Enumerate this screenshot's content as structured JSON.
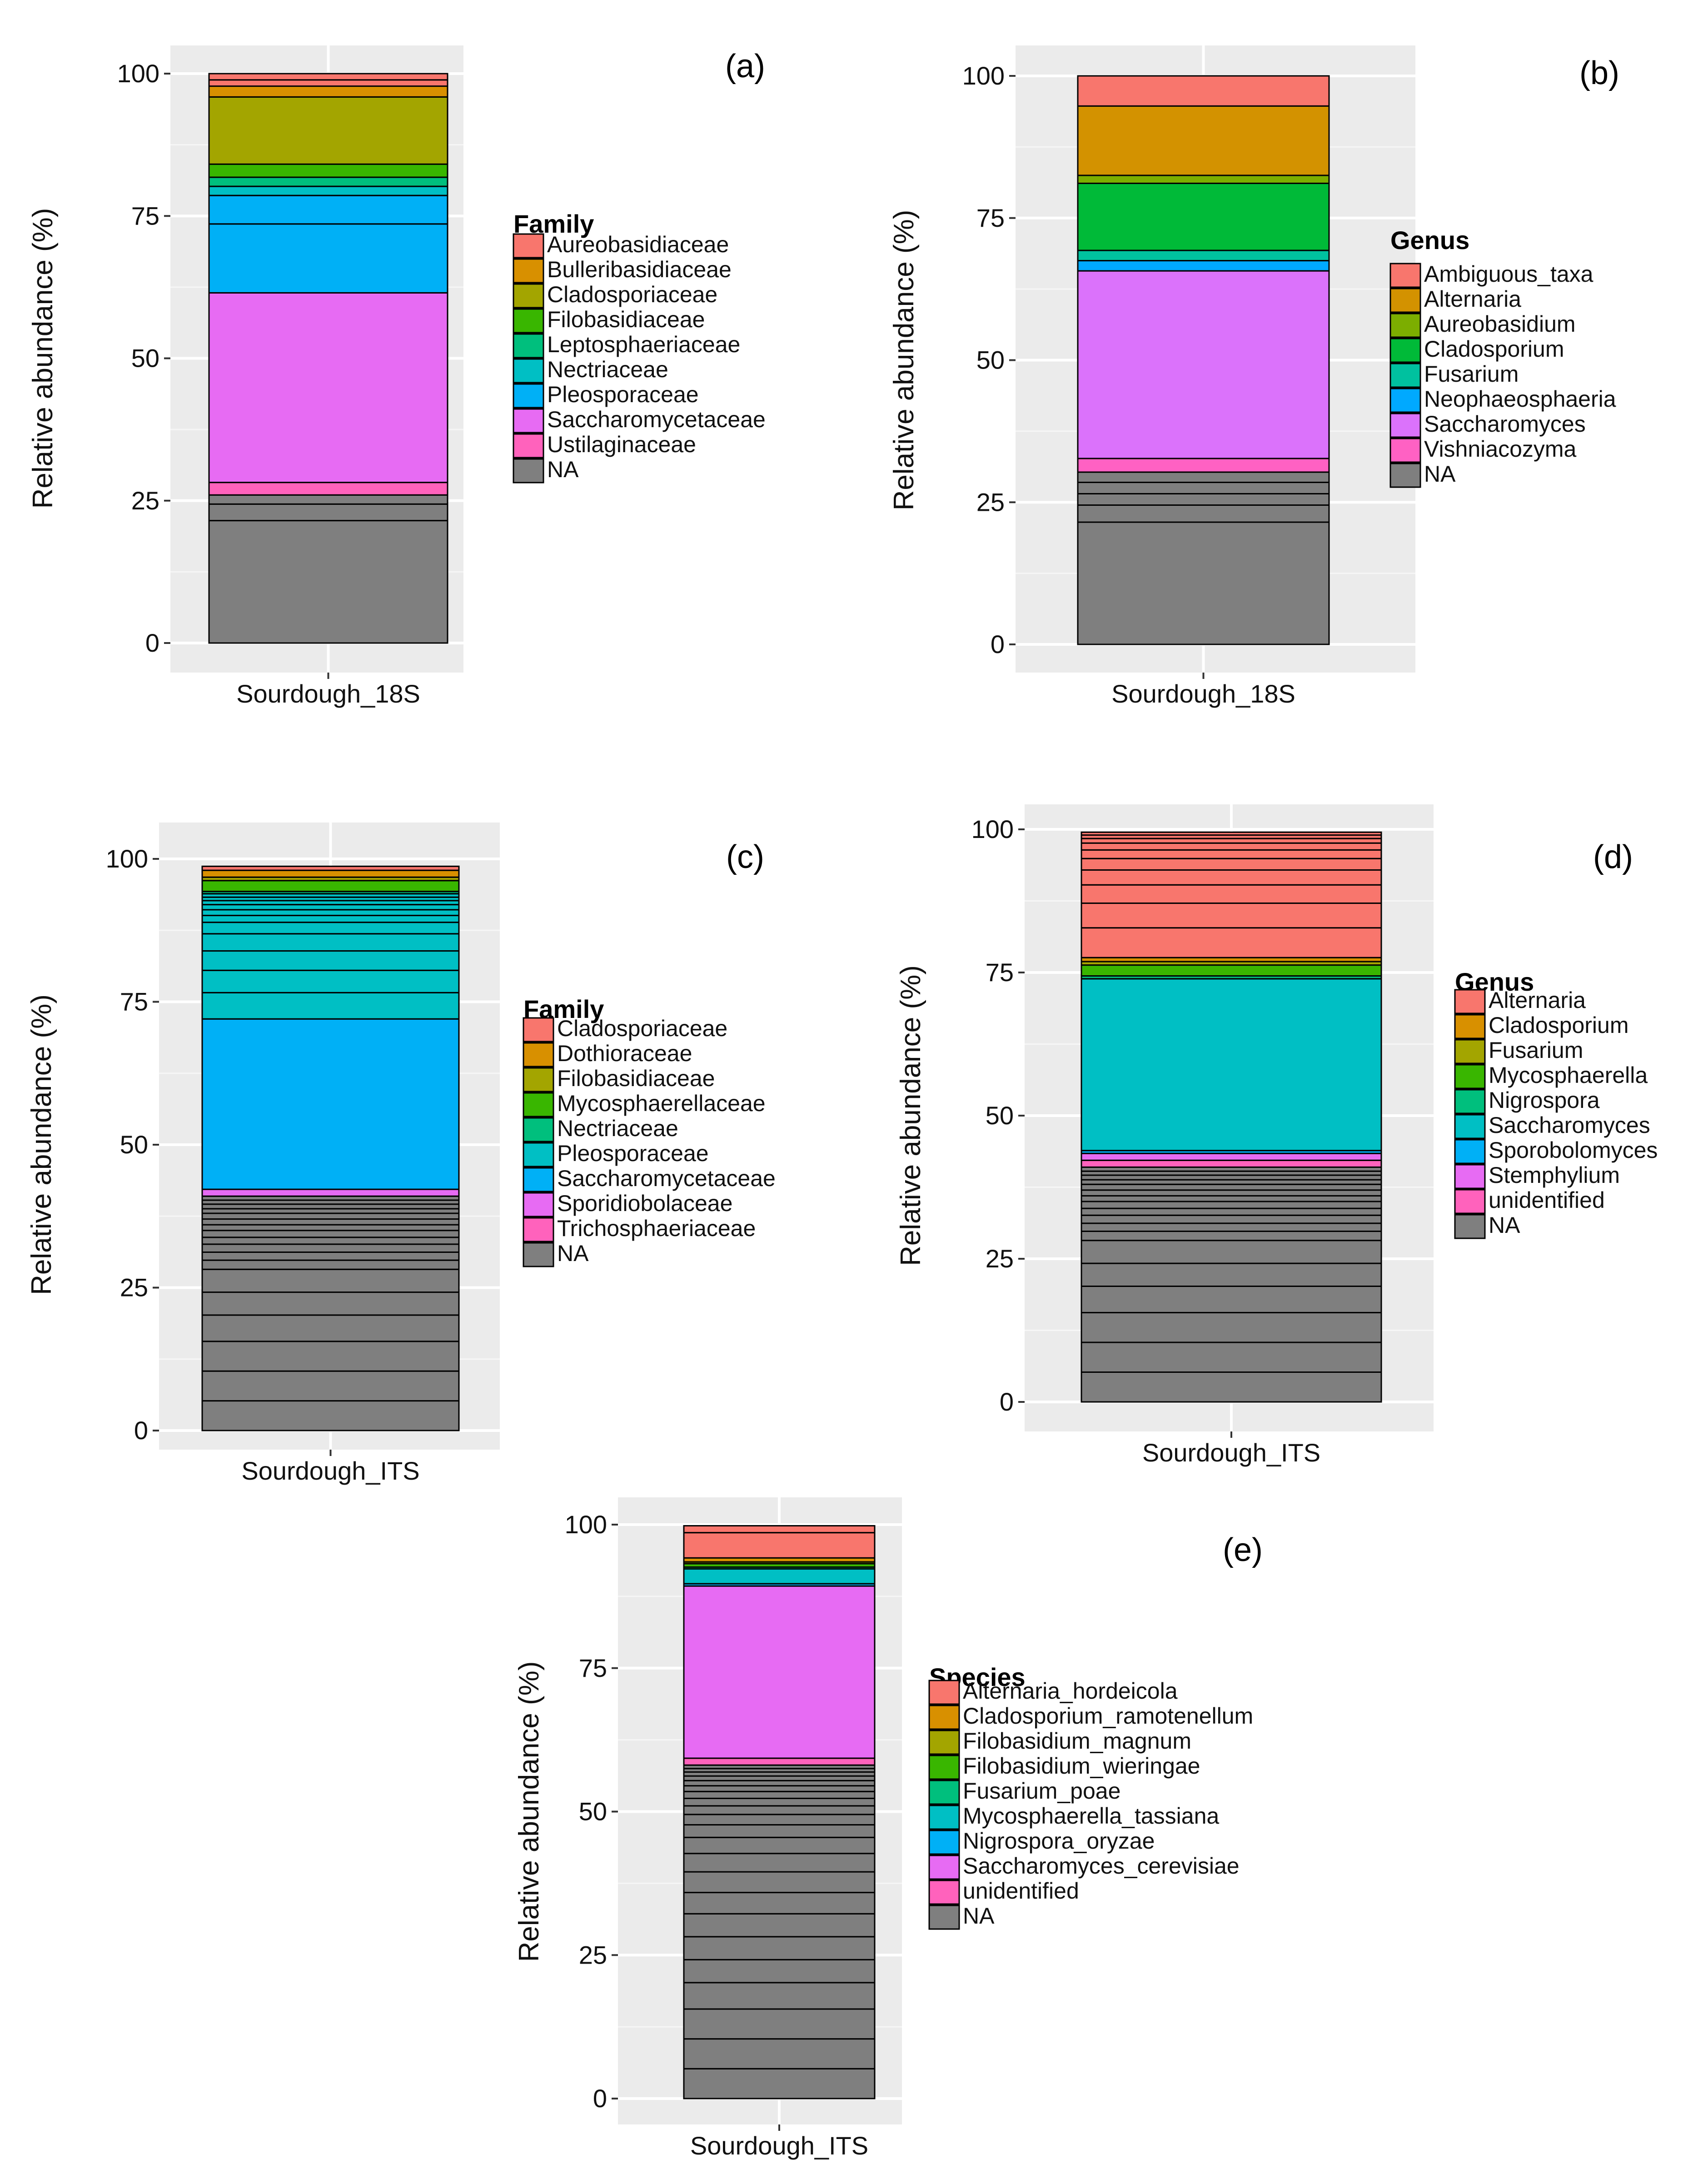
{
  "chart_data": [
    {
      "type": "bar",
      "panel_label": "(a)",
      "ylabel": "Relative abundance (%)",
      "ylim": [
        0,
        100
      ],
      "yticks": [
        "0",
        "25",
        "50",
        "75",
        "100"
      ],
      "categories": [
        "Sourdough_18S"
      ],
      "legend_title": "Family",
      "legend": [
        "Aureobasidiaceae",
        "Bulleribasidiaceae",
        "Cladosporiaceae",
        "Filobasidiaceae",
        "Leptosphaeriaceae",
        "Nectriaceae",
        "Pleosporaceae",
        "Saccharomycetaceae",
        "Ustilaginaceae",
        "NA"
      ],
      "colors": [
        "#F8766D",
        "#D89000",
        "#A3A500",
        "#39B600",
        "#00BF7D",
        "#00BFC4",
        "#00B0F6",
        "#E76BF3",
        "#FF62BC",
        "#7F7F7F"
      ],
      "segments": [
        {
          "taxon": "NA",
          "value": 21.5
        },
        {
          "taxon": "NA",
          "value": 2.9
        },
        {
          "taxon": "NA",
          "value": 1.6
        },
        {
          "taxon": "Ustilaginaceae",
          "value": 2.2
        },
        {
          "taxon": "Saccharomycetaceae",
          "value": 33.3
        },
        {
          "taxon": "Pleosporaceae",
          "value": 12.1
        },
        {
          "taxon": "Pleosporaceae",
          "value": 5.0
        },
        {
          "taxon": "Nectriaceae",
          "value": 1.6
        },
        {
          "taxon": "Leptosphaeriaceae",
          "value": 1.6
        },
        {
          "taxon": "Filobasidiaceae",
          "value": 2.3
        },
        {
          "taxon": "Cladosporiaceae",
          "value": 11.8
        },
        {
          "taxon": "Bulleribasidiaceae",
          "value": 1.9
        },
        {
          "taxon": "Aureobasidiaceae",
          "value": 1.1
        },
        {
          "taxon": "Aureobasidiaceae",
          "value": 1.1
        }
      ]
    },
    {
      "type": "bar",
      "panel_label": "(b)",
      "ylabel": "Relative abundance (%)",
      "ylim": [
        0,
        100
      ],
      "yticks": [
        "0",
        "25",
        "50",
        "75",
        "100"
      ],
      "categories": [
        "Sourdough_18S"
      ],
      "legend_title": "Genus",
      "legend": [
        "Ambiguous_taxa",
        "Alternaria",
        "Aureobasidium",
        "Cladosporium",
        "Fusarium",
        "Neophaeosphaeria",
        "Saccharomyces",
        "Vishniacozyma",
        "NA"
      ],
      "colors": [
        "#F8766D",
        "#D39200",
        "#7CAE00",
        "#00BA38",
        "#00C19F",
        "#00A9FF",
        "#DB72FB",
        "#FF61C3",
        "#7F7F7F"
      ],
      "segments": [
        {
          "taxon": "NA",
          "value": 21.5
        },
        {
          "taxon": "NA",
          "value": 3.0
        },
        {
          "taxon": "NA",
          "value": 2.0
        },
        {
          "taxon": "NA",
          "value": 2.0
        },
        {
          "taxon": "NA",
          "value": 1.8
        },
        {
          "taxon": "Vishniacozyma",
          "value": 2.4
        },
        {
          "taxon": "Saccharomyces",
          "value": 33.0
        },
        {
          "taxon": "Neophaeosphaeria",
          "value": 1.8
        },
        {
          "taxon": "Fusarium",
          "value": 1.8
        },
        {
          "taxon": "Cladosporium",
          "value": 11.8
        },
        {
          "taxon": "Aureobasidium",
          "value": 1.4
        },
        {
          "taxon": "Alternaria",
          "value": 12.2
        },
        {
          "taxon": "Ambiguous_taxa",
          "value": 5.3
        }
      ]
    },
    {
      "type": "bar",
      "panel_label": "(c)",
      "ylabel": "Relative abundance (%)",
      "ylim": [
        0,
        100
      ],
      "yticks": [
        "0",
        "25",
        "50",
        "75",
        "100"
      ],
      "categories": [
        "Sourdough_ITS"
      ],
      "legend_title": "Family",
      "legend": [
        "Cladosporiaceae",
        "Dothioraceae",
        "Filobasidiaceae",
        "Mycosphaerellaceae",
        "Nectriaceae",
        "Pleosporaceae",
        "Saccharomycetaceae",
        "Sporidiobolaceae",
        "Trichosphaeriaceae",
        "NA"
      ],
      "colors": [
        "#F8766D",
        "#D89000",
        "#A3A500",
        "#39B600",
        "#00BF7D",
        "#00BFC4",
        "#00B0F6",
        "#E76BF3",
        "#FF62BC",
        "#7F7F7F"
      ],
      "segments": [
        {
          "taxon": "NA",
          "value": 5.2
        },
        {
          "taxon": "NA",
          "value": 5.2
        },
        {
          "taxon": "NA",
          "value": 5.2
        },
        {
          "taxon": "NA",
          "value": 4.6
        },
        {
          "taxon": "NA",
          "value": 4.0
        },
        {
          "taxon": "NA",
          "value": 4.0
        },
        {
          "taxon": "NA",
          "value": 1.6
        },
        {
          "taxon": "NA",
          "value": 1.4
        },
        {
          "taxon": "NA",
          "value": 1.4
        },
        {
          "taxon": "NA",
          "value": 1.2
        },
        {
          "taxon": "NA",
          "value": 1.2
        },
        {
          "taxon": "NA",
          "value": 1.0
        },
        {
          "taxon": "NA",
          "value": 1.0
        },
        {
          "taxon": "NA",
          "value": 1.0
        },
        {
          "taxon": "NA",
          "value": 0.8
        },
        {
          "taxon": "NA",
          "value": 0.8
        },
        {
          "taxon": "NA",
          "value": 0.7
        },
        {
          "taxon": "NA",
          "value": 0.7
        },
        {
          "taxon": "Sporidiobolaceae",
          "value": 1.2
        },
        {
          "taxon": "Saccharomycetaceae",
          "value": 29.8
        },
        {
          "taxon": "Pleosporaceae",
          "value": 4.6
        },
        {
          "taxon": "Pleosporaceae",
          "value": 3.9
        },
        {
          "taxon": "Pleosporaceae",
          "value": 3.4
        },
        {
          "taxon": "Pleosporaceae",
          "value": 3.0
        },
        {
          "taxon": "Pleosporaceae",
          "value": 2.0
        },
        {
          "taxon": "Pleosporaceae",
          "value": 1.2
        },
        {
          "taxon": "Pleosporaceae",
          "value": 1.0
        },
        {
          "taxon": "Pleosporaceae",
          "value": 0.9
        },
        {
          "taxon": "Pleosporaceae",
          "value": 0.7
        },
        {
          "taxon": "Pleosporaceae",
          "value": 0.6
        },
        {
          "taxon": "Pleosporaceae",
          "value": 0.6
        },
        {
          "taxon": "Nectriaceae",
          "value": 0.4
        },
        {
          "taxon": "Mycosphaerellaceae",
          "value": 1.9
        },
        {
          "taxon": "Filobasidiaceae",
          "value": 0.6
        },
        {
          "taxon": "Dothioraceae",
          "value": 1.2
        },
        {
          "taxon": "Cladosporiaceae",
          "value": 0.7
        }
      ]
    },
    {
      "type": "bar",
      "panel_label": "(d)",
      "ylabel": "Relative abundance (%)",
      "ylim": [
        0,
        100
      ],
      "yticks": [
        "0",
        "25",
        "50",
        "75",
        "100"
      ],
      "categories": [
        "Sourdough_ITS"
      ],
      "legend_title": "Genus",
      "legend": [
        "Alternaria",
        "Cladosporium",
        "Fusarium",
        "Mycosphaerella",
        "Nigrospora",
        "Saccharomyces",
        "Sporobolomyces",
        "Stemphylium",
        "unidentified",
        "NA"
      ],
      "colors": [
        "#F8766D",
        "#D89000",
        "#A3A500",
        "#39B600",
        "#00BF7D",
        "#00BFC4",
        "#00B0F6",
        "#E76BF3",
        "#FF62BC",
        "#7F7F7F"
      ],
      "segments": [
        {
          "taxon": "NA",
          "value": 5.2
        },
        {
          "taxon": "NA",
          "value": 5.2
        },
        {
          "taxon": "NA",
          "value": 5.2
        },
        {
          "taxon": "NA",
          "value": 4.6
        },
        {
          "taxon": "NA",
          "value": 4.0
        },
        {
          "taxon": "NA",
          "value": 4.0
        },
        {
          "taxon": "NA",
          "value": 1.6
        },
        {
          "taxon": "NA",
          "value": 1.4
        },
        {
          "taxon": "NA",
          "value": 1.4
        },
        {
          "taxon": "NA",
          "value": 1.2
        },
        {
          "taxon": "NA",
          "value": 1.2
        },
        {
          "taxon": "NA",
          "value": 1.0
        },
        {
          "taxon": "NA",
          "value": 1.0
        },
        {
          "taxon": "NA",
          "value": 1.0
        },
        {
          "taxon": "NA",
          "value": 0.8
        },
        {
          "taxon": "NA",
          "value": 0.8
        },
        {
          "taxon": "NA",
          "value": 0.7
        },
        {
          "taxon": "NA",
          "value": 0.7
        },
        {
          "taxon": "unidentified",
          "value": 1.2
        },
        {
          "taxon": "Stemphylium",
          "value": 1.2
        },
        {
          "taxon": "Sporobolomyces",
          "value": 0.5
        },
        {
          "taxon": "Saccharomyces",
          "value": 30.0
        },
        {
          "taxon": "Nigrospora",
          "value": 0.5
        },
        {
          "taxon": "Mycosphaerella",
          "value": 1.9
        },
        {
          "taxon": "Fusarium",
          "value": 0.6
        },
        {
          "taxon": "Cladosporium",
          "value": 0.7
        },
        {
          "taxon": "Alternaria",
          "value": 5.2
        },
        {
          "taxon": "Alternaria",
          "value": 4.3
        },
        {
          "taxon": "Alternaria",
          "value": 3.2
        },
        {
          "taxon": "Alternaria",
          "value": 2.6
        },
        {
          "taxon": "Alternaria",
          "value": 2.0
        },
        {
          "taxon": "Alternaria",
          "value": 1.5
        },
        {
          "taxon": "Alternaria",
          "value": 1.2
        },
        {
          "taxon": "Alternaria",
          "value": 0.8
        },
        {
          "taxon": "Alternaria",
          "value": 0.6
        },
        {
          "taxon": "Alternaria",
          "value": 0.5
        }
      ]
    },
    {
      "type": "bar",
      "panel_label": "(e)",
      "ylabel": "Relative abundance (%)",
      "ylim": [
        0,
        100
      ],
      "yticks": [
        "0",
        "25",
        "50",
        "75",
        "100"
      ],
      "categories": [
        "Sourdough_ITS"
      ],
      "legend_title": "Species",
      "legend": [
        "Alternaria_hordeicola",
        "Cladosporium_ramotenellum",
        "Filobasidium_magnum",
        "Filobasidium_wieringae",
        "Fusarium_poae",
        "Mycosphaerella_tassiana",
        "Nigrospora_oryzae",
        "Saccharomyces_cerevisiae",
        "unidentified",
        "NA"
      ],
      "colors": [
        "#F8766D",
        "#D89000",
        "#A3A500",
        "#39B600",
        "#00BF7D",
        "#00BFC4",
        "#00B0F6",
        "#E76BF3",
        "#FF62BC",
        "#7F7F7F"
      ],
      "segments": [
        {
          "taxon": "NA",
          "value": 5.2
        },
        {
          "taxon": "NA",
          "value": 5.2
        },
        {
          "taxon": "NA",
          "value": 5.2
        },
        {
          "taxon": "NA",
          "value": 4.6
        },
        {
          "taxon": "NA",
          "value": 4.0
        },
        {
          "taxon": "NA",
          "value": 4.0
        },
        {
          "taxon": "NA",
          "value": 4.0
        },
        {
          "taxon": "NA",
          "value": 3.7
        },
        {
          "taxon": "NA",
          "value": 3.6
        },
        {
          "taxon": "NA",
          "value": 3.2
        },
        {
          "taxon": "NA",
          "value": 2.8
        },
        {
          "taxon": "NA",
          "value": 2.2
        },
        {
          "taxon": "NA",
          "value": 1.8
        },
        {
          "taxon": "NA",
          "value": 1.5
        },
        {
          "taxon": "NA",
          "value": 1.3
        },
        {
          "taxon": "NA",
          "value": 1.2
        },
        {
          "taxon": "NA",
          "value": 1.0
        },
        {
          "taxon": "NA",
          "value": 0.9
        },
        {
          "taxon": "NA",
          "value": 0.8
        },
        {
          "taxon": "NA",
          "value": 0.7
        },
        {
          "taxon": "NA",
          "value": 0.6
        },
        {
          "taxon": "NA",
          "value": 0.6
        },
        {
          "taxon": "unidentified",
          "value": 1.2
        },
        {
          "taxon": "Saccharomyces_cerevisiae",
          "value": 30.0
        },
        {
          "taxon": "Nigrospora_oryzae",
          "value": 0.4
        },
        {
          "taxon": "Mycosphaerella_tassiana",
          "value": 2.6
        },
        {
          "taxon": "Fusarium_poae",
          "value": 0.3
        },
        {
          "taxon": "Filobasidium_wieringae",
          "value": 0.6
        },
        {
          "taxon": "Filobasidium_magnum",
          "value": 0.3
        },
        {
          "taxon": "Cladosporium_ramotenellum",
          "value": 0.7
        },
        {
          "taxon": "Alternaria_hordeicola",
          "value": 4.4
        },
        {
          "taxon": "Alternaria_hordeicola",
          "value": 1.2
        }
      ]
    }
  ]
}
